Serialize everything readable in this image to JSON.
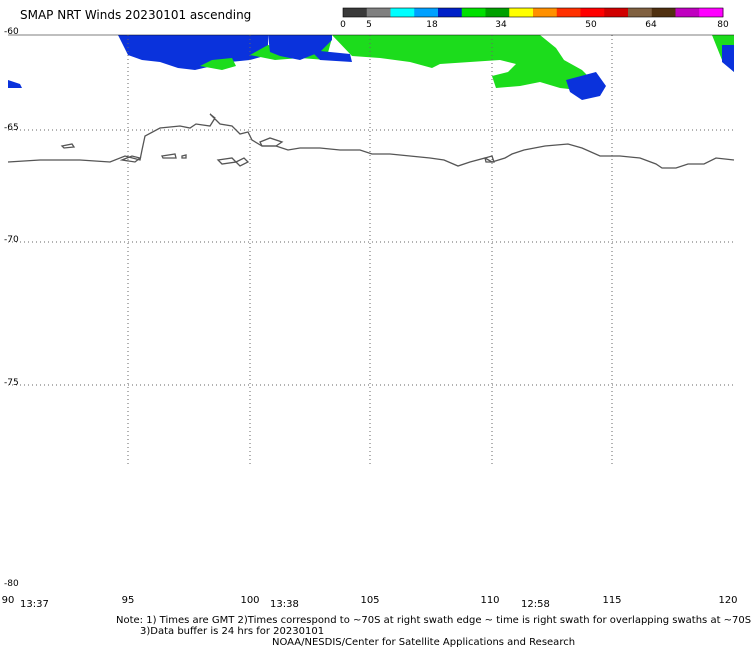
{
  "header": {
    "title": "SMAP NRT Winds 20230101 ascending"
  },
  "colorbar": {
    "tick_labels": [
      "0",
      "5",
      "18",
      "34",
      "50",
      "64",
      "80"
    ],
    "colors": [
      "#3a3a3a",
      "#808080",
      "#00ffff",
      "#00a0ff",
      "#0020c8",
      "#00e000",
      "#00a000",
      "#ffff00",
      "#ff9000",
      "#ff3000",
      "#ff0000",
      "#d00000",
      "#806040",
      "#503010",
      "#c000c0",
      "#ff00ff"
    ]
  },
  "map": {
    "projection": "plate carree",
    "lat_range": [
      -80,
      -60
    ],
    "lon_range": [
      90,
      120
    ],
    "lat_labels": [
      "-60",
      "-65",
      "-70",
      "-75",
      "-80"
    ],
    "lon_labels": [
      "90",
      "95",
      "100",
      "105",
      "110",
      "115",
      "120"
    ],
    "grid": "dotted",
    "wind_colors": {
      "low": "#0a32dc",
      "mid": "#1cdc1c"
    }
  },
  "swath_times": {
    "t1": "13:37",
    "t2": "13:38",
    "t3": "12:58"
  },
  "notes": {
    "line1": "Note: 1) Times are GMT 2)Times correspond to ~70S at right swath edge ~ time is right swath for overlapping swaths at ~70S",
    "line2": "3)Data buffer is 24 hrs for 20230101",
    "line3": "NOAA/NESDIS/Center for Satellite Applications and Research"
  }
}
